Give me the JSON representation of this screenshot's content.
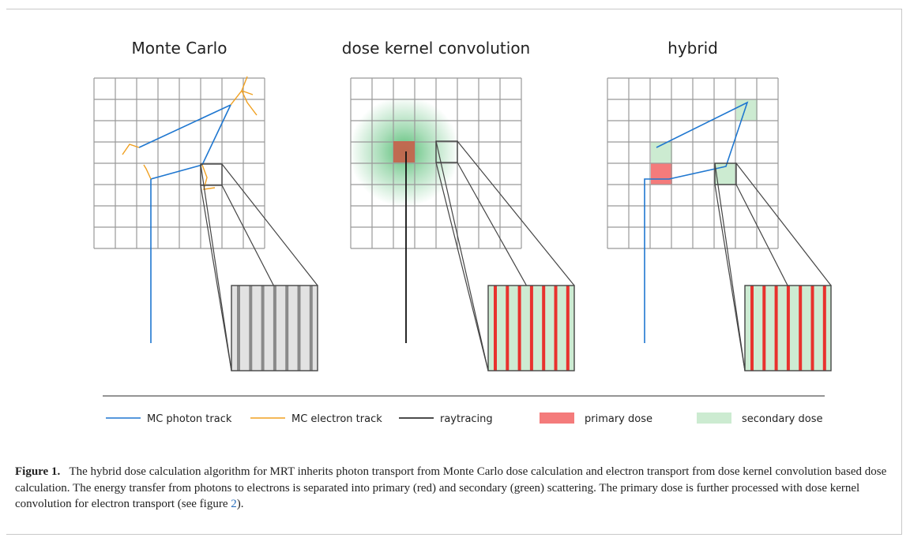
{
  "panels": [
    {
      "id": "mc",
      "title": "Monte Carlo"
    },
    {
      "id": "dkc",
      "title": "dose kernel convolution"
    },
    {
      "id": "hybrid",
      "title": "hybrid"
    }
  ],
  "legend": [
    {
      "id": "mc-photon",
      "label": "MC photon track",
      "kind": "line",
      "color": "#1f77d0"
    },
    {
      "id": "mc-electron",
      "label": "MC electron track",
      "kind": "line",
      "color": "#f0a020"
    },
    {
      "id": "raytracing",
      "label": "raytracing",
      "kind": "line",
      "color": "#111111"
    },
    {
      "id": "primary-dose",
      "label": "primary dose",
      "kind": "patch",
      "color": "#f47b7b"
    },
    {
      "id": "secondary-dose",
      "label": "secondary dose",
      "kind": "patch",
      "color": "#ccebd1"
    }
  ],
  "caption": {
    "label": "Figure 1.",
    "text_before_ref": "The hybrid dose calculation algorithm for MRT inherits photon transport from Monte Carlo dose calculation and electron transport from dose kernel convolution based dose calculation. The energy transfer from photons to electrons is separated into primary (red) and secondary (green) scattering. The primary dose is further processed with dose kernel convolution for electron transport (see figure ",
    "ref": "2",
    "text_after_ref": ")."
  },
  "colors": {
    "grid": "#999999",
    "photon": "#1f77d0",
    "electron": "#f0a020",
    "ray": "#111111",
    "primary": "#f47b7b",
    "primary_dark": "#c8604a",
    "secondary": "#ccebd1",
    "kernel": "#22a84a",
    "stripe_red": "#e8322e",
    "stripe_gray": "#8a8a8a"
  }
}
